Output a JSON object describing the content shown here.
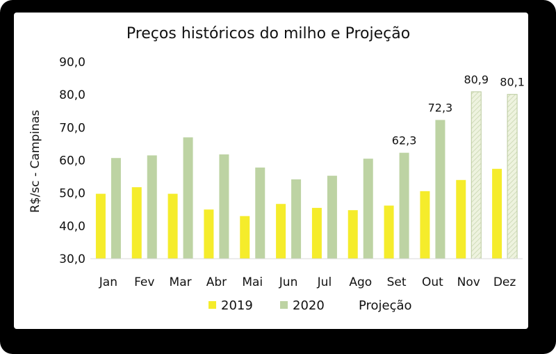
{
  "chart_data": {
    "type": "bar",
    "title": "Preços históricos do milho e Projeção",
    "ylabel": "R$/sc - Campinas",
    "xlabel": "",
    "ylim": [
      30,
      90
    ],
    "yticks": [
      "90,0",
      "80,0",
      "70,0",
      "60,0",
      "50,0",
      "40,0",
      "30,0"
    ],
    "ytick_values": [
      90,
      80,
      70,
      60,
      50,
      40,
      30
    ],
    "categories": [
      "Jan",
      "Fev",
      "Mar",
      "Abr",
      "Mai",
      "Jun",
      "Jul",
      "Ago",
      "Set",
      "Out",
      "Nov",
      "Dez"
    ],
    "series": [
      {
        "name": "2019",
        "color": "#f5ec2b",
        "values": [
          49.8,
          51.8,
          49.8,
          45.0,
          43.0,
          46.7,
          45.5,
          44.8,
          46.2,
          50.6,
          54.0,
          57.4
        ]
      },
      {
        "name": "2020",
        "color": "#bdd3a3",
        "values": [
          60.7,
          61.5,
          67.0,
          61.8,
          57.8,
          54.2,
          55.3,
          60.5,
          62.3,
          72.3,
          null,
          null
        ]
      },
      {
        "name": "Projeção",
        "color": "#eef3df",
        "values": [
          null,
          null,
          null,
          null,
          null,
          null,
          null,
          null,
          null,
          null,
          80.9,
          80.1
        ]
      }
    ],
    "data_labels": [
      {
        "category": "Set",
        "text": "62,3"
      },
      {
        "category": "Out",
        "text": "72,3"
      },
      {
        "category": "Nov",
        "text": "80,9"
      },
      {
        "category": "Dez",
        "text": "80,1"
      }
    ],
    "legend": [
      "2019",
      "2020",
      "Projeção"
    ],
    "legend_position": "bottom",
    "grid": false
  }
}
